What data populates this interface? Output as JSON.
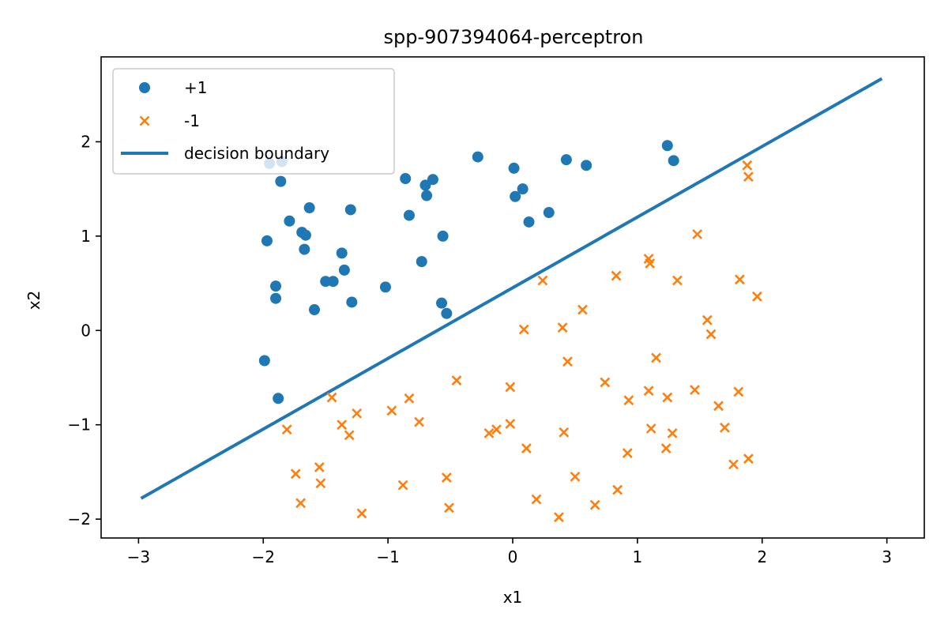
{
  "chart_data": {
    "type": "scatter",
    "title": "spp-907394064-perceptron",
    "xlabel": "x1",
    "ylabel": "x2",
    "xlim": [
      -3.3,
      3.3
    ],
    "ylim": [
      -2.2,
      2.9
    ],
    "xticks": [
      -3,
      -2,
      -1,
      0,
      1,
      2,
      3
    ],
    "xtick_labels": [
      "−3",
      "−2",
      "−1",
      "0",
      "1",
      "2",
      "3"
    ],
    "yticks": [
      -2,
      -1,
      0,
      1,
      2
    ],
    "ytick_labels": [
      "−2",
      "−1",
      "0",
      "1",
      "2"
    ],
    "grid": false,
    "legend_position": "upper-left",
    "series": [
      {
        "name": "+1",
        "marker": "circle",
        "color": "#1f77b4",
        "points": [
          [
            -1.95,
            1.77
          ],
          [
            -1.85,
            1.79
          ],
          [
            -1.86,
            1.58
          ],
          [
            -1.97,
            0.95
          ],
          [
            -1.79,
            1.16
          ],
          [
            -1.63,
            1.3
          ],
          [
            -1.69,
            1.04
          ],
          [
            -1.66,
            1.01
          ],
          [
            -1.67,
            0.86
          ],
          [
            -1.3,
            1.28
          ],
          [
            -1.37,
            0.82
          ],
          [
            -1.35,
            0.64
          ],
          [
            -1.5,
            0.52
          ],
          [
            -1.44,
            0.52
          ],
          [
            -1.9,
            0.47
          ],
          [
            -1.9,
            0.34
          ],
          [
            -1.59,
            0.22
          ],
          [
            -1.29,
            0.3
          ],
          [
            -1.99,
            -0.32
          ],
          [
            -1.88,
            -0.72
          ],
          [
            -1.02,
            0.46
          ],
          [
            -0.86,
            1.61
          ],
          [
            -0.83,
            1.22
          ],
          [
            -0.7,
            1.54
          ],
          [
            -0.69,
            1.43
          ],
          [
            -0.64,
            1.6
          ],
          [
            -0.73,
            0.73
          ],
          [
            -0.56,
            1.0
          ],
          [
            -0.57,
            0.29
          ],
          [
            -0.53,
            0.18
          ],
          [
            -0.28,
            1.84
          ],
          [
            0.01,
            1.72
          ],
          [
            0.02,
            1.42
          ],
          [
            0.08,
            1.5
          ],
          [
            0.13,
            1.15
          ],
          [
            0.29,
            1.25
          ],
          [
            0.43,
            1.81
          ],
          [
            0.59,
            1.75
          ],
          [
            1.24,
            1.96
          ],
          [
            1.29,
            1.8
          ]
        ]
      },
      {
        "name": "-1",
        "marker": "x",
        "color": "#ff7f0e",
        "points": [
          [
            -1.81,
            -1.05
          ],
          [
            -1.74,
            -1.52
          ],
          [
            -1.7,
            -1.83
          ],
          [
            -1.55,
            -1.45
          ],
          [
            -1.54,
            -1.62
          ],
          [
            -1.45,
            -0.71
          ],
          [
            -1.37,
            -1.0
          ],
          [
            -1.31,
            -1.11
          ],
          [
            -1.25,
            -0.88
          ],
          [
            -1.21,
            -1.94
          ],
          [
            -0.97,
            -0.85
          ],
          [
            -0.88,
            -1.64
          ],
          [
            -0.83,
            -0.72
          ],
          [
            -0.75,
            -0.97
          ],
          [
            -0.53,
            -1.56
          ],
          [
            -0.51,
            -1.88
          ],
          [
            -0.45,
            -0.53
          ],
          [
            -0.19,
            -1.09
          ],
          [
            -0.13,
            -1.05
          ],
          [
            -0.02,
            -0.99
          ],
          [
            -0.02,
            -0.6
          ],
          [
            0.09,
            0.01
          ],
          [
            0.11,
            -1.25
          ],
          [
            0.19,
            -1.79
          ],
          [
            0.24,
            0.53
          ],
          [
            0.37,
            -1.98
          ],
          [
            0.4,
            0.03
          ],
          [
            0.41,
            -1.08
          ],
          [
            0.44,
            -0.33
          ],
          [
            0.5,
            -1.55
          ],
          [
            0.56,
            0.22
          ],
          [
            0.66,
            -1.85
          ],
          [
            0.74,
            -0.55
          ],
          [
            0.83,
            0.58
          ],
          [
            0.84,
            -1.69
          ],
          [
            0.92,
            -1.3
          ],
          [
            0.93,
            -0.74
          ],
          [
            1.09,
            -0.64
          ],
          [
            1.09,
            0.76
          ],
          [
            1.1,
            0.71
          ],
          [
            1.11,
            -1.04
          ],
          [
            1.15,
            -0.29
          ],
          [
            1.23,
            -1.25
          ],
          [
            1.24,
            -0.71
          ],
          [
            1.28,
            -1.09
          ],
          [
            1.32,
            0.53
          ],
          [
            1.46,
            -0.63
          ],
          [
            1.48,
            1.02
          ],
          [
            1.56,
            0.11
          ],
          [
            1.59,
            -0.04
          ],
          [
            1.65,
            -0.8
          ],
          [
            1.7,
            -1.03
          ],
          [
            1.77,
            -1.42
          ],
          [
            1.81,
            -0.65
          ],
          [
            1.82,
            0.54
          ],
          [
            1.88,
            1.75
          ],
          [
            1.89,
            1.63
          ],
          [
            1.89,
            -1.36
          ],
          [
            1.96,
            0.36
          ]
        ]
      },
      {
        "name": "decision boundary",
        "type": "line",
        "color": "#1f77b4",
        "points": [
          [
            -2.98,
            -1.78
          ],
          [
            2.96,
            2.67
          ]
        ]
      }
    ]
  }
}
